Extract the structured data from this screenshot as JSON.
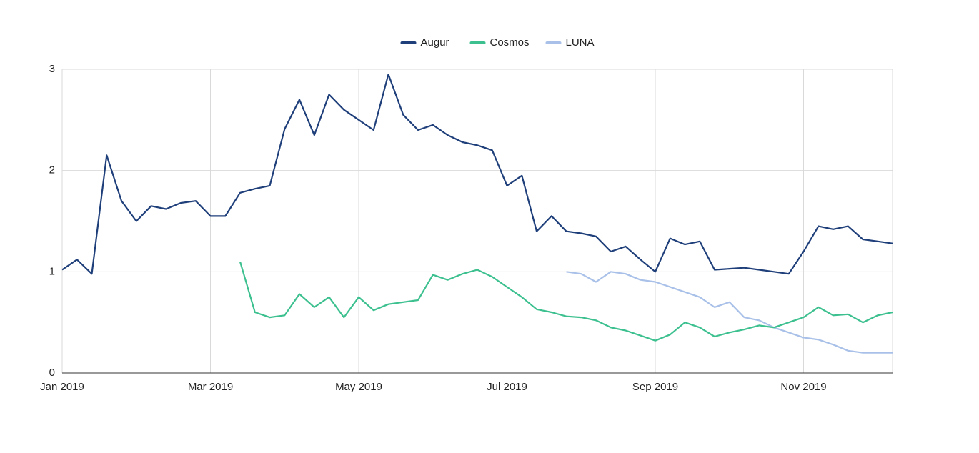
{
  "chart_data": {
    "type": "line",
    "x": [
      0,
      0.2,
      0.4,
      0.6,
      0.8,
      1,
      1.2,
      1.4,
      1.6,
      1.8,
      2,
      2.2,
      2.4,
      2.6,
      2.8,
      3,
      3.2,
      3.4,
      3.6,
      3.8,
      4,
      4.2,
      4.4,
      4.6,
      4.8,
      5,
      5.2,
      5.4,
      5.6,
      5.8,
      6,
      6.2,
      6.4,
      6.6,
      6.8,
      7,
      7.2,
      7.4,
      7.6,
      7.8,
      8,
      8.2,
      8.4,
      8.6,
      8.8,
      9,
      9.2,
      9.4,
      9.6,
      9.8,
      10,
      10.2,
      10.4,
      10.6,
      10.8,
      11,
      11.2
    ],
    "series": [
      {
        "name": "Augur",
        "color": "#1f3f7a",
        "values": [
          1.02,
          1.12,
          0.98,
          2.15,
          1.7,
          1.5,
          1.65,
          1.62,
          1.68,
          1.7,
          1.55,
          1.55,
          1.78,
          1.82,
          1.85,
          2.41,
          2.7,
          2.35,
          2.75,
          2.6,
          2.5,
          2.4,
          2.95,
          2.55,
          2.4,
          2.45,
          2.35,
          2.28,
          2.25,
          2.2,
          1.85,
          1.95,
          1.4,
          1.55,
          1.4,
          1.38,
          1.35,
          1.2,
          1.25,
          1.12,
          1.0,
          1.33,
          1.27,
          1.3,
          1.02,
          1.03,
          1.04,
          1.02,
          1.0,
          0.98,
          1.2,
          1.45,
          1.42,
          1.45,
          1.32,
          1.3,
          1.28
        ]
      },
      {
        "name": "Cosmos",
        "color": "#3cc08f",
        "values": [
          null,
          null,
          null,
          null,
          null,
          null,
          null,
          null,
          null,
          null,
          null,
          null,
          1.1,
          0.6,
          0.55,
          0.57,
          0.78,
          0.65,
          0.75,
          0.55,
          0.75,
          0.62,
          0.68,
          0.7,
          0.72,
          0.97,
          0.92,
          0.98,
          1.02,
          0.95,
          0.85,
          0.75,
          0.63,
          0.6,
          0.56,
          0.55,
          0.52,
          0.45,
          0.42,
          0.37,
          0.32,
          0.38,
          0.5,
          0.45,
          0.36,
          0.4,
          0.43,
          0.47,
          0.45,
          0.5,
          0.55,
          0.65,
          0.57,
          0.58,
          0.5,
          0.57,
          0.6
        ]
      },
      {
        "name": "LUNA",
        "color": "#a9c1e8",
        "values": [
          null,
          null,
          null,
          null,
          null,
          null,
          null,
          null,
          null,
          null,
          null,
          null,
          null,
          null,
          null,
          null,
          null,
          null,
          null,
          null,
          null,
          null,
          null,
          null,
          null,
          null,
          null,
          null,
          null,
          null,
          null,
          null,
          null,
          null,
          1.0,
          0.98,
          0.9,
          1.0,
          0.98,
          0.92,
          0.9,
          0.85,
          0.8,
          0.75,
          0.65,
          0.7,
          0.55,
          0.52,
          0.45,
          0.4,
          0.35,
          0.33,
          0.28,
          0.22,
          0.2,
          0.2,
          0.2
        ]
      }
    ],
    "xlim": [
      0,
      11.2
    ],
    "xticks": [
      {
        "value": 0,
        "label": "Jan 2019"
      },
      {
        "value": 2,
        "label": "Mar 2019"
      },
      {
        "value": 4,
        "label": "May 2019"
      },
      {
        "value": 6,
        "label": "Jul 2019"
      },
      {
        "value": 8,
        "label": "Sep 2019"
      },
      {
        "value": 10,
        "label": "Nov 2019"
      }
    ],
    "ylim": [
      0,
      3
    ],
    "yticks": [
      0,
      1,
      2,
      3
    ],
    "grid": true,
    "legend": "top"
  }
}
